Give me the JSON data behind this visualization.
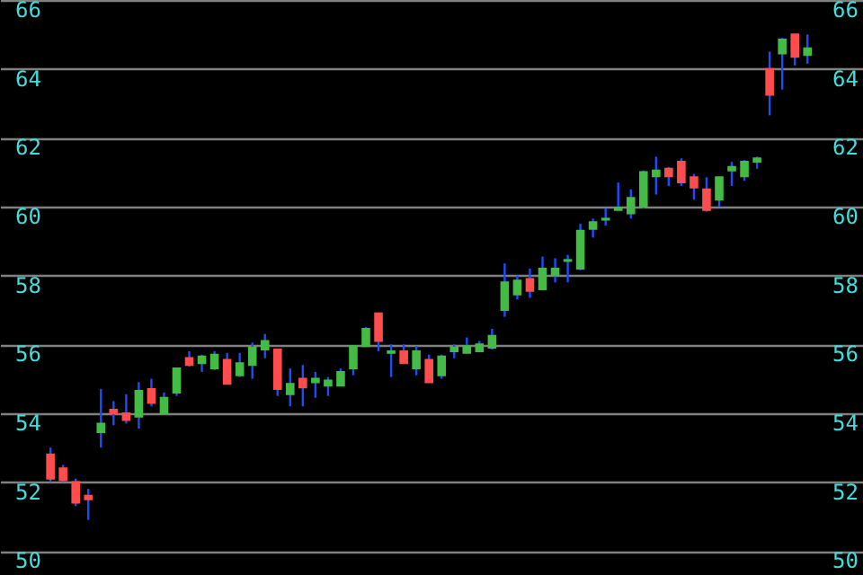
{
  "chart_data": {
    "type": "candlestick",
    "categories": [
      null,
      null,
      null,
      null,
      null,
      null,
      null,
      null,
      null,
      null,
      null,
      null,
      null,
      null,
      null,
      null,
      null,
      null,
      null,
      null,
      null,
      null,
      null,
      null,
      null,
      null,
      null,
      null,
      null,
      null,
      null,
      null,
      null,
      null,
      null,
      null,
      null,
      null,
      null,
      null,
      null,
      null,
      null,
      null,
      null,
      null,
      null,
      null,
      null,
      null,
      null,
      null,
      null,
      null,
      null,
      null,
      null,
      null,
      null,
      null,
      null
    ],
    "ohlc": [
      [
        52.8,
        53.0,
        52.0,
        52.1
      ],
      [
        52.4,
        52.5,
        52.0,
        52.05
      ],
      [
        52.0,
        52.1,
        51.3,
        51.4
      ],
      [
        51.6,
        51.8,
        50.9,
        51.5
      ],
      [
        53.45,
        54.7,
        53.0,
        53.7
      ],
      [
        54.1,
        54.35,
        53.65,
        54.0
      ],
      [
        54.0,
        54.55,
        53.7,
        53.8
      ],
      [
        53.9,
        54.9,
        53.55,
        54.65
      ],
      [
        54.7,
        55.0,
        54.2,
        54.3
      ],
      [
        54.0,
        54.6,
        54.0,
        54.45
      ],
      [
        54.6,
        55.3,
        54.5,
        55.3
      ],
      [
        55.6,
        55.8,
        55.35,
        55.4
      ],
      [
        55.45,
        55.7,
        55.2,
        55.65
      ],
      [
        55.3,
        55.8,
        55.25,
        55.7
      ],
      [
        55.55,
        55.75,
        54.85,
        54.85
      ],
      [
        55.1,
        55.75,
        55.05,
        55.45
      ],
      [
        55.4,
        56.05,
        55.0,
        55.9
      ],
      [
        55.85,
        56.3,
        55.6,
        56.1
      ],
      [
        55.85,
        55.85,
        54.5,
        54.7
      ],
      [
        54.55,
        55.3,
        54.2,
        54.85
      ],
      [
        55.0,
        55.4,
        54.2,
        54.75
      ],
      [
        54.9,
        55.2,
        54.45,
        55.0
      ],
      [
        54.8,
        55.05,
        54.5,
        54.95
      ],
      [
        54.8,
        55.3,
        54.8,
        55.2
      ],
      [
        55.3,
        55.95,
        55.1,
        55.95
      ],
      [
        55.95,
        56.5,
        55.95,
        56.45
      ],
      [
        56.9,
        56.9,
        55.8,
        56.1
      ],
      [
        55.75,
        56.0,
        55.05,
        55.8
      ],
      [
        55.8,
        56.0,
        55.45,
        55.45
      ],
      [
        55.3,
        55.95,
        55.1,
        55.8
      ],
      [
        55.55,
        55.7,
        54.9,
        54.9
      ],
      [
        55.1,
        55.7,
        55.0,
        55.65
      ],
      [
        55.8,
        56.0,
        55.6,
        55.9
      ],
      [
        55.75,
        56.2,
        55.75,
        55.95
      ],
      [
        55.8,
        56.1,
        55.8,
        56.0
      ],
      [
        55.9,
        56.45,
        55.85,
        56.25
      ],
      [
        57.0,
        58.35,
        56.8,
        57.8
      ],
      [
        57.45,
        58.0,
        57.3,
        57.85
      ],
      [
        57.9,
        58.2,
        57.35,
        57.55
      ],
      [
        57.6,
        58.55,
        57.6,
        58.2
      ],
      [
        58.0,
        58.5,
        57.8,
        58.2
      ],
      [
        58.42,
        58.6,
        57.8,
        58.45
      ],
      [
        58.2,
        59.5,
        58.15,
        59.3
      ],
      [
        59.35,
        59.65,
        59.1,
        59.55
      ],
      [
        59.62,
        59.95,
        59.45,
        59.65
      ],
      [
        59.9,
        60.7,
        59.9,
        59.97
      ],
      [
        59.8,
        60.5,
        59.65,
        60.25
      ],
      [
        60.0,
        61.05,
        59.95,
        61.0
      ],
      [
        60.88,
        61.45,
        60.35,
        61.05
      ],
      [
        61.1,
        61.15,
        60.6,
        60.88
      ],
      [
        61.3,
        61.4,
        60.6,
        60.7
      ],
      [
        60.85,
        60.95,
        60.2,
        60.55
      ],
      [
        60.5,
        60.85,
        59.85,
        59.9
      ],
      [
        60.2,
        60.85,
        60.0,
        60.85
      ],
      [
        61.05,
        61.3,
        60.6,
        61.15
      ],
      [
        60.88,
        61.35,
        60.75,
        61.3
      ],
      [
        61.3,
        61.45,
        61.1,
        61.4
      ],
      [
        64.0,
        64.5,
        62.65,
        63.25
      ],
      [
        64.45,
        64.9,
        63.4,
        64.85
      ],
      [
        65.0,
        65.0,
        64.1,
        64.35
      ],
      [
        64.4,
        65.0,
        64.15,
        64.6
      ]
    ],
    "colors": [
      "#ff4d4d",
      "#ff4d4d",
      "#ff4d4d",
      "#ff4d4d",
      "#44bb44",
      "#ff4d4d",
      "#ff4d4d",
      "#44bb44",
      "#ff4d4d",
      "#44bb44",
      "#44bb44",
      "#ff4d4d",
      "#44bb44",
      "#44bb44",
      "#ff4d4d",
      "#44bb44",
      "#44bb44",
      "#44bb44",
      "#ff4d4d",
      "#44bb44",
      "#ff4d4d",
      "#44bb44",
      "#44bb44",
      "#44bb44",
      "#44bb44",
      "#44bb44",
      "#ff4d4d",
      "#44bb44",
      "#ff4d4d",
      "#44bb44",
      "#ff4d4d",
      "#44bb44",
      "#44bb44",
      "#44bb44",
      "#44bb44",
      "#44bb44",
      "#44bb44",
      "#44bb44",
      "#ff4d4d",
      "#44bb44",
      "#44bb44",
      "#44bb44",
      "#44bb44",
      "#44bb44",
      "#44bb44",
      "#44bb44",
      "#44bb44",
      "#44bb44",
      "#44bb44",
      "#ff4d4d",
      "#ff4d4d",
      "#ff4d4d",
      "#ff4d4d",
      "#44bb44",
      "#44bb44",
      "#44bb44",
      "#44bb44",
      "#ff4d4d",
      "#44bb44",
      "#ff4d4d",
      "#44bb44"
    ],
    "ylim": [
      49.3,
      66
    ],
    "yticks": [
      50,
      52,
      54,
      56,
      58,
      60,
      62,
      64,
      66
    ],
    "y2lim": [
      49.3,
      66
    ],
    "y2ticks": [
      50,
      52,
      54,
      56,
      58,
      60,
      62,
      64,
      66
    ],
    "grid": true,
    "tick_labels": "y"
  }
}
